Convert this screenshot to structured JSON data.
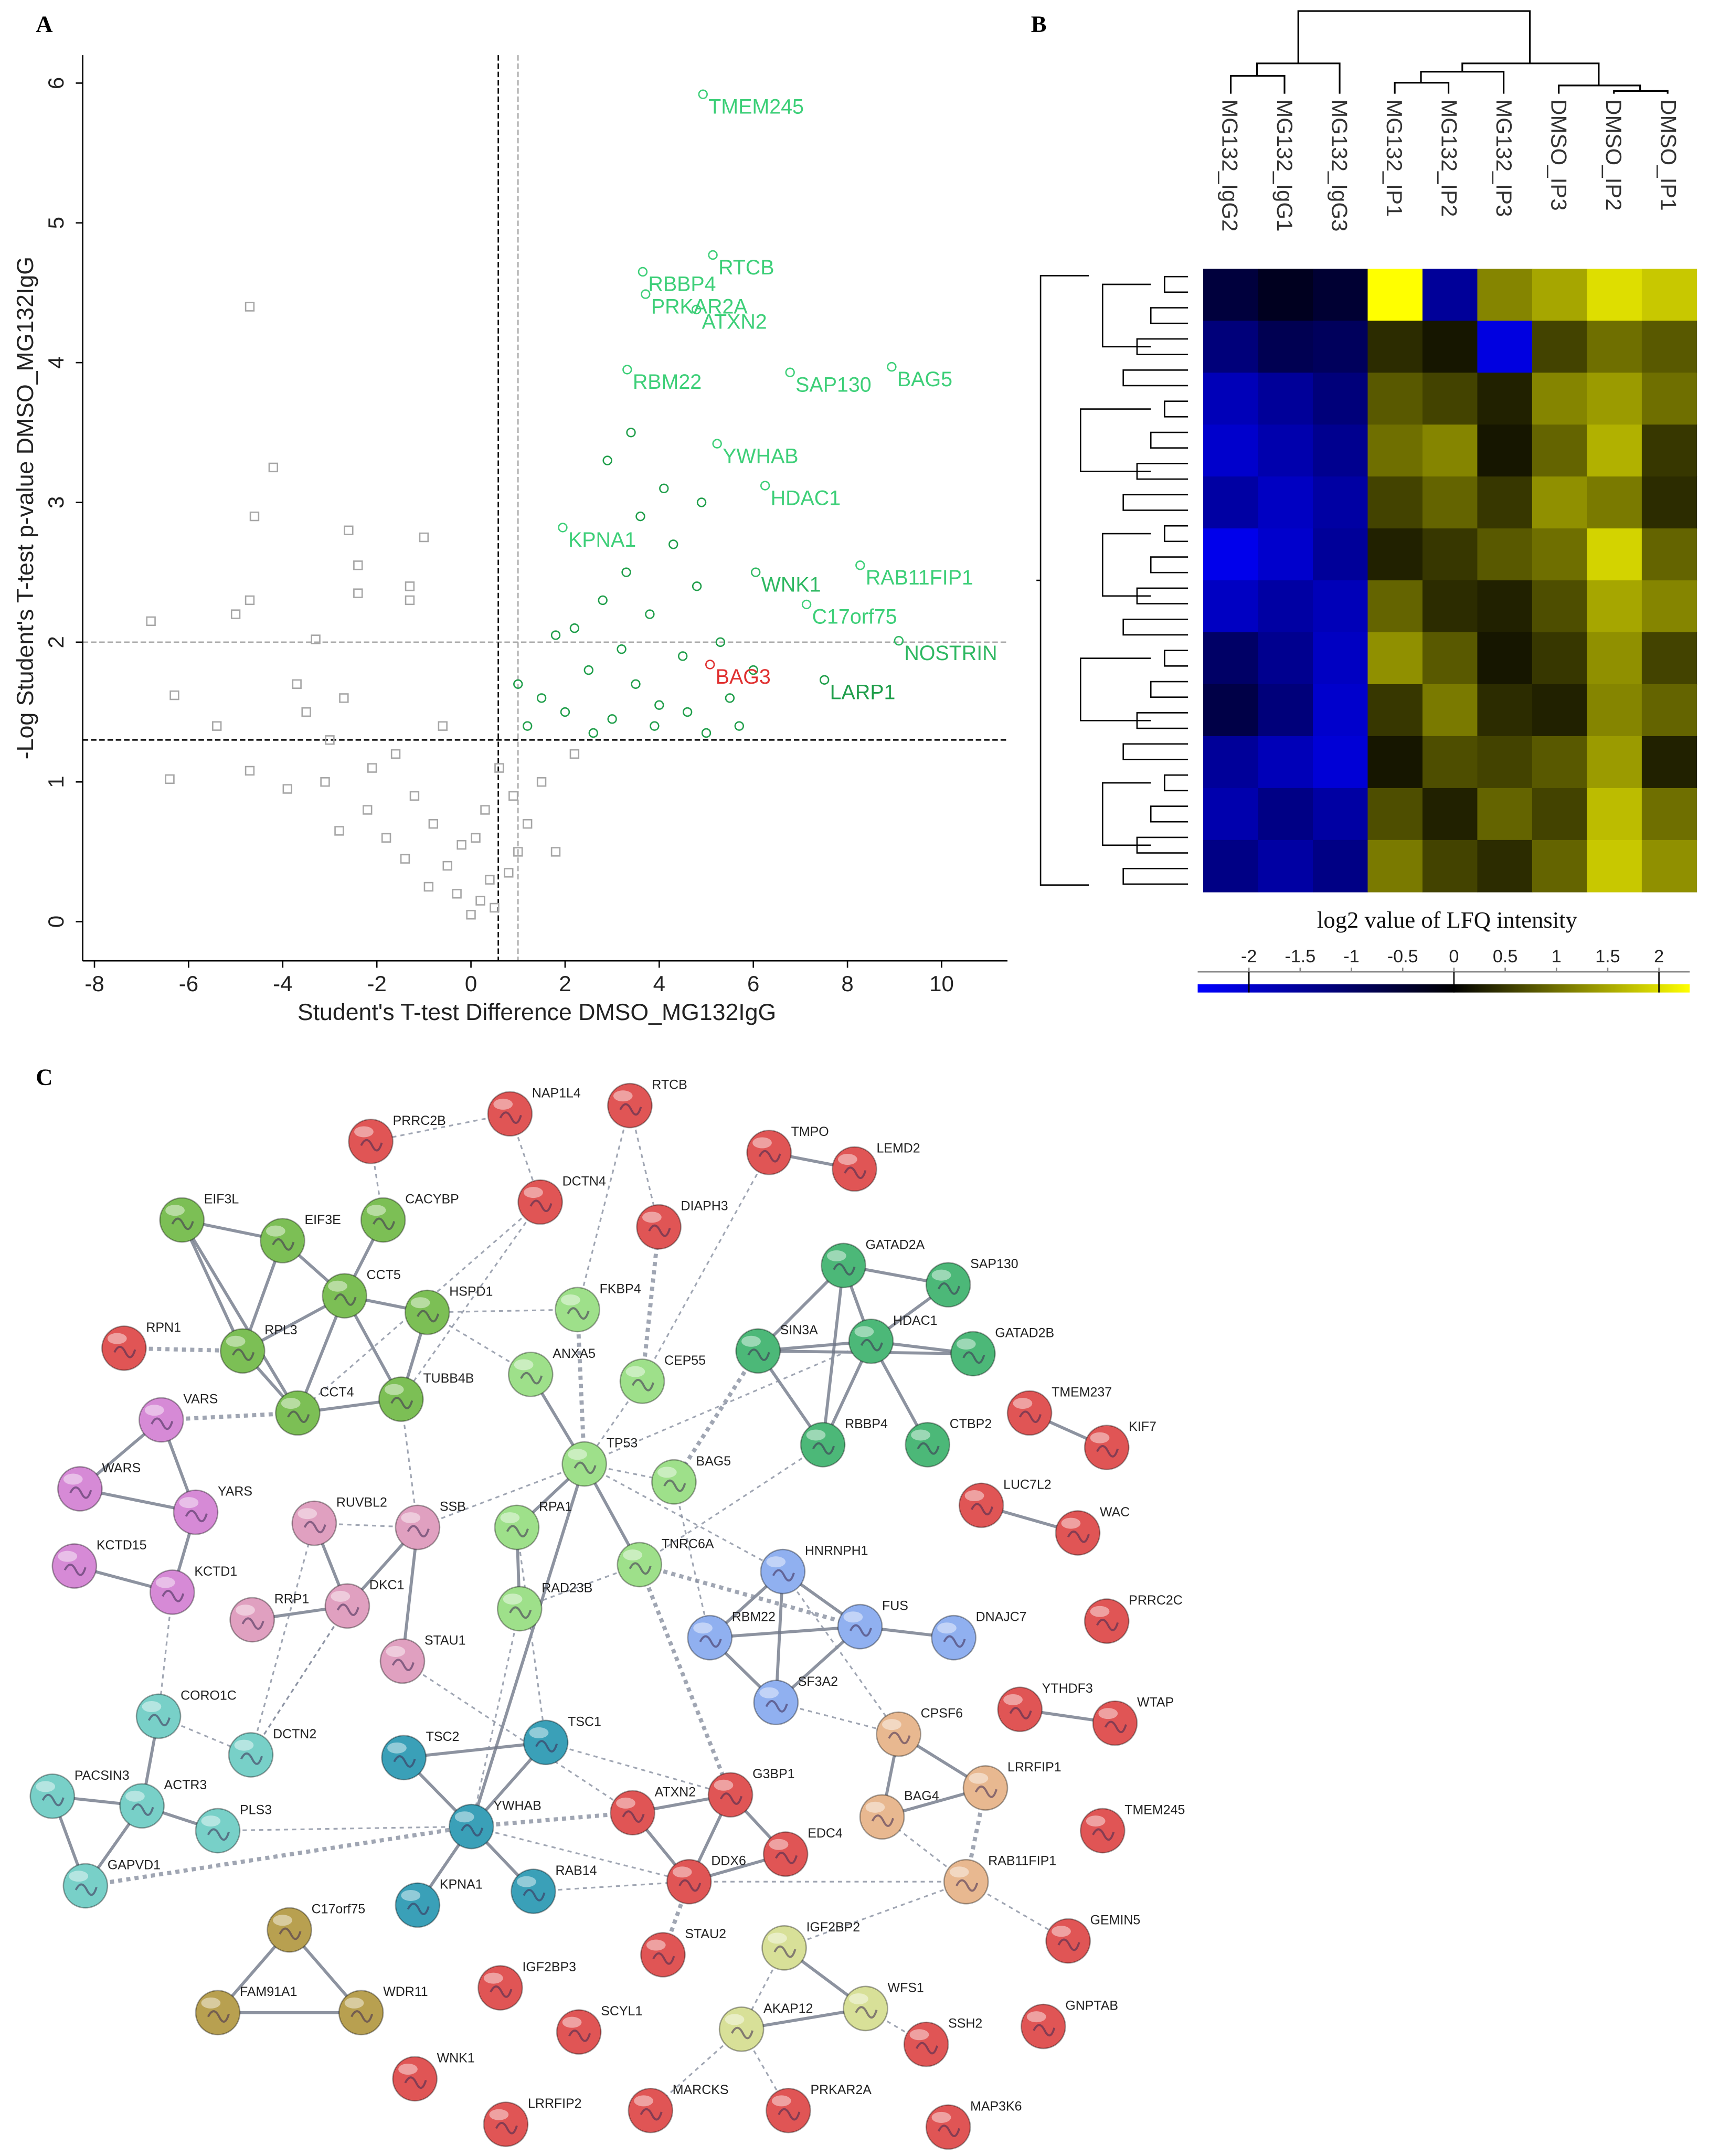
{
  "panel_labels": [
    "A",
    "B",
    "C"
  ],
  "chart_data": [
    {
      "type": "scatter",
      "xlabel": "Student's T-test Difference DMSO_MG132IgG",
      "ylabel": "-Log Student's T-test p-value DMSO_MG132IgG",
      "xlim": [
        -8.25,
        11.4
      ],
      "ylim": [
        -0.28,
        6.2
      ],
      "xticks": [
        -8,
        -6,
        -4,
        -2,
        0,
        2,
        4,
        6,
        8,
        10
      ],
      "yticks": [
        0,
        1,
        2,
        3,
        4,
        5,
        6
      ],
      "x_ref": [
        {
          "value": 0.58,
          "color": "#000000"
        },
        {
          "value": 1,
          "color": "#aaaaaa"
        }
      ],
      "y_ref": [
        {
          "value": 1.3,
          "color": "#000000"
        },
        {
          "value": 2,
          "color": "#aaaaaa"
        }
      ],
      "series": [
        {
          "color": "#a6a6a6",
          "marker": "square",
          "x": [
            -4.7,
            -4.2,
            -4.6,
            -2.6,
            -1.0,
            -6.8,
            -6.3,
            -6.4,
            -4.7,
            -5.0,
            -2.4,
            -2.4,
            -1.3,
            -1.3,
            -3.3,
            -4.7,
            -3.7,
            -3.5,
            -3.0,
            -2.7,
            -2.1,
            -1.6,
            -1.2,
            -0.8,
            -0.5,
            -0.3,
            0.0,
            0.2,
            0.4,
            -0.6,
            -1.8,
            -2.2,
            -3.1,
            -0.2,
            0.1,
            0.3,
            0.6,
            0.9,
            1.2,
            1.5,
            0.8,
            1.8,
            2.2,
            -0.9,
            -1.4,
            -2.8,
            -3.9,
            -5.4,
            0.5,
            1.0
          ],
          "values": [
            4.4,
            3.25,
            2.9,
            2.8,
            2.75,
            2.15,
            1.62,
            1.02,
            2.3,
            2.2,
            2.55,
            2.35,
            2.4,
            2.3,
            2.02,
            1.08,
            1.7,
            1.5,
            1.3,
            1.6,
            1.1,
            1.2,
            0.9,
            0.7,
            0.4,
            0.2,
            0.05,
            0.15,
            0.3,
            1.4,
            0.6,
            0.8,
            1.0,
            0.55,
            0.6,
            0.8,
            1.1,
            0.9,
            0.7,
            1.0,
            0.35,
            0.5,
            1.2,
            0.25,
            0.45,
            0.65,
            0.95,
            1.4,
            0.1,
            0.5
          ]
        },
        {
          "color": "#1f9e4a",
          "marker": "circle",
          "x": [
            1.2,
            1.5,
            2.0,
            2.5,
            3.0,
            3.5,
            4.0,
            4.5,
            5.0,
            5.5,
            2.2,
            2.8,
            3.3,
            3.8,
            4.3,
            4.8,
            5.3,
            6.0,
            1.0,
            1.8,
            2.6,
            3.2,
            3.9,
            4.6,
            5.7,
            3.4,
            2.9,
            4.1,
            4.9,
            3.6
          ],
          "values": [
            1.4,
            1.6,
            1.5,
            1.8,
            1.45,
            1.7,
            1.55,
            1.9,
            1.35,
            1.6,
            2.1,
            2.3,
            2.5,
            2.2,
            2.7,
            2.4,
            2.0,
            1.8,
            1.7,
            2.05,
            1.35,
            1.95,
            1.4,
            1.5,
            1.4,
            3.5,
            3.3,
            3.1,
            3.0,
            2.9
          ]
        }
      ],
      "labeled": [
        {
          "label": "TMEM245",
          "x": 4.93,
          "y": 5.92,
          "color": "#3dcf78"
        },
        {
          "label": "RTCB",
          "x": 5.14,
          "y": 4.77,
          "color": "#3dcf78"
        },
        {
          "label": "RBBP4",
          "x": 3.65,
          "y": 4.65,
          "color": "#3dcf78"
        },
        {
          "label": "PRKAR2A",
          "x": 3.71,
          "y": 4.49,
          "color": "#3dcf78"
        },
        {
          "label": "ATXN2",
          "x": 4.79,
          "y": 4.38,
          "color": "#3dcf78"
        },
        {
          "label": "RBM22",
          "x": 3.32,
          "y": 3.95,
          "color": "#3dcf78"
        },
        {
          "label": "BAG5",
          "x": 8.94,
          "y": 3.97,
          "color": "#3dcf78"
        },
        {
          "label": "SAP130",
          "x": 6.78,
          "y": 3.93,
          "color": "#3dcf78"
        },
        {
          "label": "YWHAB",
          "x": 5.23,
          "y": 3.42,
          "color": "#3dcf78"
        },
        {
          "label": "HDAC1",
          "x": 6.25,
          "y": 3.12,
          "color": "#3dcf78"
        },
        {
          "label": "KPNA1",
          "x": 1.95,
          "y": 2.82,
          "color": "#3dcf78"
        },
        {
          "label": "WNK1",
          "x": 6.05,
          "y": 2.5,
          "color": "#2fb862"
        },
        {
          "label": "RAB11FIP1",
          "x": 8.27,
          "y": 2.55,
          "color": "#3dcf78"
        },
        {
          "label": "C17orf75",
          "x": 7.13,
          "y": 2.27,
          "color": "#3dcf78"
        },
        {
          "label": "NOSTRIN",
          "x": 9.09,
          "y": 2.01,
          "color": "#2fb862"
        },
        {
          "label": "BAG3",
          "x": 5.08,
          "y": 1.84,
          "color": "#e03030"
        },
        {
          "label": "LARP1",
          "x": 7.51,
          "y": 1.73,
          "color": "#1f9e4a"
        }
      ]
    },
    {
      "type": "heatmap",
      "columns": [
        "MG132_IgG2",
        "MG132_IgG1",
        "MG132_IgG3",
        "MG132_IP1",
        "MG132_IP2",
        "MG132_IP3",
        "DMSO_IP3",
        "DMSO_IP2",
        "DMSO_IP1"
      ],
      "values": [
        [
          -0.6,
          -0.3,
          -0.5,
          2.3,
          -1.5,
          1.2,
          1.5,
          2.0,
          1.8
        ],
        [
          -1.2,
          -0.8,
          -0.9,
          0.4,
          0.2,
          -2.2,
          0.6,
          1.0,
          0.8
        ],
        [
          -1.8,
          -1.5,
          -1.2,
          0.8,
          0.6,
          0.3,
          1.2,
          1.4,
          1.0
        ],
        [
          -2.0,
          -1.7,
          -1.4,
          1.0,
          1.2,
          0.2,
          0.9,
          1.6,
          0.5
        ],
        [
          -1.6,
          -1.9,
          -1.6,
          0.6,
          0.9,
          0.5,
          1.3,
          1.1,
          0.4
        ],
        [
          -2.3,
          -2.0,
          -1.5,
          0.3,
          0.5,
          0.8,
          1.0,
          1.9,
          0.9
        ],
        [
          -1.9,
          -1.6,
          -1.8,
          0.9,
          0.4,
          0.3,
          0.7,
          1.5,
          1.2
        ],
        [
          -1.0,
          -1.4,
          -1.9,
          1.3,
          0.8,
          0.2,
          0.5,
          1.3,
          0.6
        ],
        [
          -0.7,
          -1.2,
          -2.0,
          0.5,
          1.1,
          0.4,
          0.3,
          1.2,
          0.9
        ],
        [
          -1.5,
          -1.8,
          -2.1,
          0.2,
          0.7,
          0.6,
          0.8,
          1.4,
          0.3
        ],
        [
          -1.7,
          -1.3,
          -1.6,
          0.7,
          0.3,
          0.9,
          0.6,
          1.7,
          1.0
        ],
        [
          -1.3,
          -1.6,
          -1.3,
          1.1,
          0.6,
          0.4,
          0.9,
          1.8,
          1.3
        ]
      ],
      "colorscale": [
        "#0000ff",
        "#000000",
        "#ffff00"
      ],
      "clim": [
        -2.5,
        2.3
      ],
      "colorbar_title": "log2 value of LFQ intensity",
      "colorbar_ticks": [
        -2,
        -1.5,
        -1,
        -0.5,
        0,
        0.5,
        1,
        1.5,
        2
      ]
    }
  ],
  "network": {
    "nodes": [
      {
        "label": "NAP1L4",
        "color": "#e05555"
      },
      {
        "label": "RTCB",
        "color": "#e05555"
      },
      {
        "label": "PRRC2B",
        "color": "#e05555"
      },
      {
        "label": "TMPO",
        "color": "#e05555"
      },
      {
        "label": "LEMD2",
        "color": "#e05555"
      },
      {
        "label": "DCTN4",
        "color": "#e05555"
      },
      {
        "label": "DIAPH3",
        "color": "#e05555"
      },
      {
        "label": "EIF3L",
        "color": "#7cbf55"
      },
      {
        "label": "EIF3E",
        "color": "#7cbf55"
      },
      {
        "label": "CACYBP",
        "color": "#7cbf55"
      },
      {
        "label": "CCT5",
        "color": "#7cbf55"
      },
      {
        "label": "HSPD1",
        "color": "#7cbf55"
      },
      {
        "label": "FKBP4",
        "color": "#9ee08a"
      },
      {
        "label": "GATAD2A",
        "color": "#4cb878"
      },
      {
        "label": "SAP130",
        "color": "#4cb878"
      },
      {
        "label": "GATAD2B",
        "color": "#4cb878"
      },
      {
        "label": "SIN3A",
        "color": "#4cb878"
      },
      {
        "label": "HDAC1",
        "color": "#4cb878"
      },
      {
        "label": "RPN1",
        "color": "#e05555"
      },
      {
        "label": "RPL3",
        "color": "#7cbf55"
      },
      {
        "label": "ANXA5",
        "color": "#9ee08a"
      },
      {
        "label": "CEP55",
        "color": "#9ee08a"
      },
      {
        "label": "TUBB4B",
        "color": "#7cbf55"
      },
      {
        "label": "CCT4",
        "color": "#7cbf55"
      },
      {
        "label": "RBBP4",
        "color": "#4cb878"
      },
      {
        "label": "CTBP2",
        "color": "#4cb878"
      },
      {
        "label": "TMEM237",
        "color": "#e05555"
      },
      {
        "label": "KIF7",
        "color": "#e05555"
      },
      {
        "label": "VARS",
        "color": "#d68ad6"
      },
      {
        "label": "TP53",
        "color": "#9ee08a"
      },
      {
        "label": "BAG5",
        "color": "#9ee08a"
      },
      {
        "label": "LUC7L2",
        "color": "#e05555"
      },
      {
        "label": "WAC",
        "color": "#e05555"
      },
      {
        "label": "WARS",
        "color": "#d68ad6"
      },
      {
        "label": "YARS",
        "color": "#d68ad6"
      },
      {
        "label": "RUVBL2",
        "color": "#e0a0c0"
      },
      {
        "label": "SSB",
        "color": "#e0a0c0"
      },
      {
        "label": "RPA1",
        "color": "#9ee08a"
      },
      {
        "label": "TNRC6A",
        "color": "#9ee08a"
      },
      {
        "label": "HNRNPH1",
        "color": "#90b0f0"
      },
      {
        "label": "KCTD15",
        "color": "#d68ad6"
      },
      {
        "label": "KCTD1",
        "color": "#d68ad6"
      },
      {
        "label": "DKC1",
        "color": "#e0a0c0"
      },
      {
        "label": "RRP1",
        "color": "#e0a0c0"
      },
      {
        "label": "RAD23B",
        "color": "#9ee08a"
      },
      {
        "label": "RBM22",
        "color": "#90b0f0"
      },
      {
        "label": "FUS",
        "color": "#90b0f0"
      },
      {
        "label": "DNAJC7",
        "color": "#90b0f0"
      },
      {
        "label": "PRRC2C",
        "color": "#e05555"
      },
      {
        "label": "STAU1",
        "color": "#e0a0c0"
      },
      {
        "label": "SF3A2",
        "color": "#90b0f0"
      },
      {
        "label": "CORO1C",
        "color": "#78d0c8"
      },
      {
        "label": "YTHDF3",
        "color": "#e05555"
      },
      {
        "label": "WTAP",
        "color": "#e05555"
      },
      {
        "label": "CPSF6",
        "color": "#e8b890"
      },
      {
        "label": "TSC2",
        "color": "#3aa0b8"
      },
      {
        "label": "TSC1",
        "color": "#3aa0b8"
      },
      {
        "label": "DCTN2",
        "color": "#78d0c8"
      },
      {
        "label": "LRRFIP1",
        "color": "#e8b890"
      },
      {
        "label": "PACSIN3",
        "color": "#78d0c8"
      },
      {
        "label": "ACTR3",
        "color": "#78d0c8"
      },
      {
        "label": "G3BP1",
        "color": "#e05555"
      },
      {
        "label": "ATXN2",
        "color": "#e05555"
      },
      {
        "label": "BAG4",
        "color": "#e8b890"
      },
      {
        "label": "PLS3",
        "color": "#78d0c8"
      },
      {
        "label": "YWHAB",
        "color": "#3aa0b8"
      },
      {
        "label": "TMEM245",
        "color": "#e05555"
      },
      {
        "label": "EDC4",
        "color": "#e05555"
      },
      {
        "label": "GAPVD1",
        "color": "#78d0c8"
      },
      {
        "label": "DDX6",
        "color": "#e05555"
      },
      {
        "label": "RAB11FIP1",
        "color": "#e8b890"
      },
      {
        "label": "KPNA1",
        "color": "#3aa0b8"
      },
      {
        "label": "RAB14",
        "color": "#3aa0b8"
      },
      {
        "label": "C17orf75",
        "color": "#b8a050"
      },
      {
        "label": "STAU2",
        "color": "#e05555"
      },
      {
        "label": "IGF2BP2",
        "color": "#d8e098"
      },
      {
        "label": "GEMIN5",
        "color": "#e05555"
      },
      {
        "label": "FAM91A1",
        "color": "#b8a050"
      },
      {
        "label": "WDR11",
        "color": "#b8a050"
      },
      {
        "label": "IGF2BP3",
        "color": "#e05555"
      },
      {
        "label": "WFS1",
        "color": "#d8e098"
      },
      {
        "label": "GNPTAB",
        "color": "#e05555"
      },
      {
        "label": "SCYL1",
        "color": "#e05555"
      },
      {
        "label": "AKAP12",
        "color": "#d8e098"
      },
      {
        "label": "SSH2",
        "color": "#e05555"
      },
      {
        "label": "WNK1",
        "color": "#e05555"
      },
      {
        "label": "MARCKS",
        "color": "#e05555"
      },
      {
        "label": "PRKAR2A",
        "color": "#e05555"
      },
      {
        "label": "MAP3K6",
        "color": "#e05555"
      },
      {
        "label": "LRRFIP2",
        "color": "#e05555"
      }
    ]
  }
}
